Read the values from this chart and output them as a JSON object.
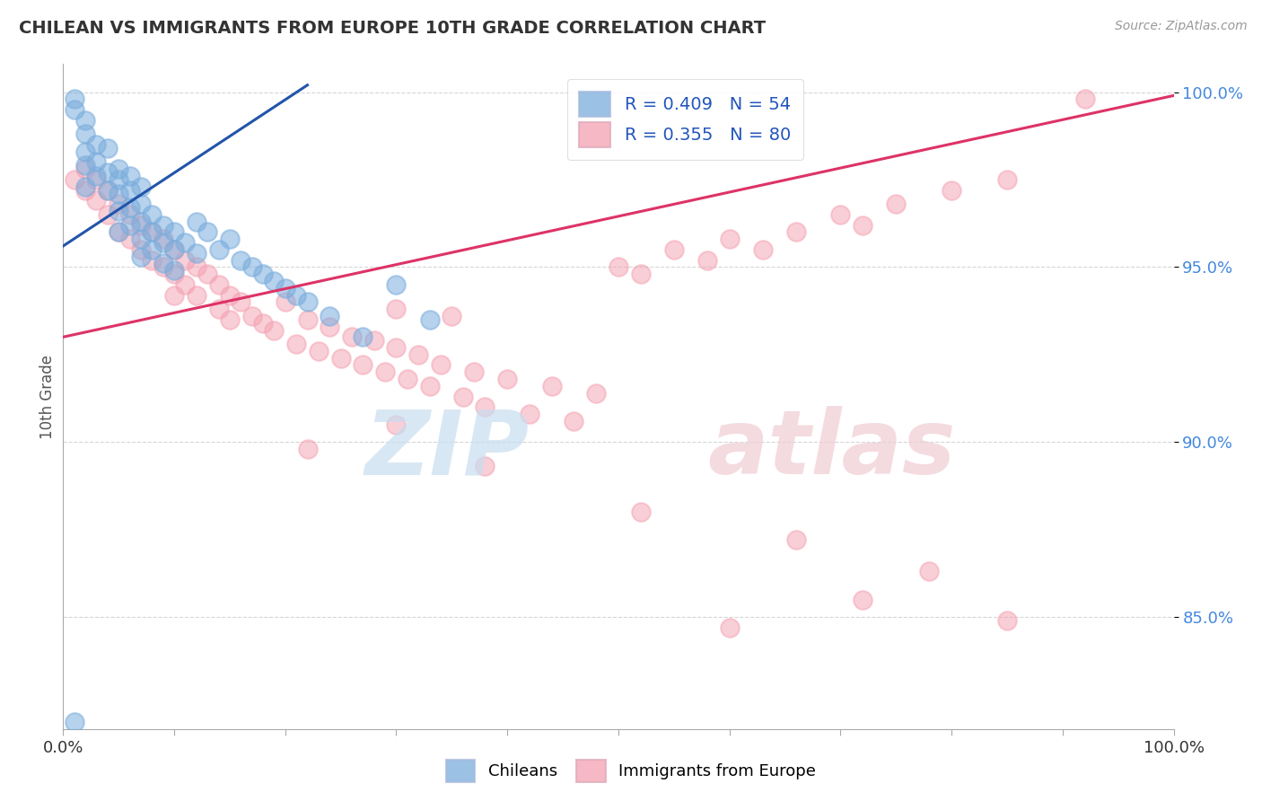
{
  "title": "CHILEAN VS IMMIGRANTS FROM EUROPE 10TH GRADE CORRELATION CHART",
  "source": "Source: ZipAtlas.com",
  "ylabel": "10th Grade",
  "xlim": [
    0.0,
    1.0
  ],
  "ylim": [
    0.818,
    1.008
  ],
  "yticks": [
    0.85,
    0.9,
    0.95,
    1.0
  ],
  "ytick_labels": [
    "85.0%",
    "90.0%",
    "95.0%",
    "100.0%"
  ],
  "legend_blue_label": "R = 0.409   N = 54",
  "legend_pink_label": "R = 0.355   N = 80",
  "legend_bottom_blue": "Chileans",
  "legend_bottom_pink": "Immigrants from Europe",
  "blue_color": "#7aaddd",
  "pink_color": "#f4a0b0",
  "blue_line_color": "#2255aa",
  "pink_line_color": "#dd3366",
  "blue_line": [
    [
      0.0,
      0.956
    ],
    [
      0.22,
      1.002
    ]
  ],
  "pink_line": [
    [
      0.0,
      0.93
    ],
    [
      1.0,
      0.999
    ]
  ],
  "blue_x": [
    0.01,
    0.01,
    0.02,
    0.02,
    0.02,
    0.02,
    0.02,
    0.03,
    0.03,
    0.03,
    0.04,
    0.04,
    0.04,
    0.05,
    0.05,
    0.05,
    0.05,
    0.05,
    0.06,
    0.06,
    0.06,
    0.06,
    0.07,
    0.07,
    0.07,
    0.07,
    0.07,
    0.08,
    0.08,
    0.08,
    0.09,
    0.09,
    0.09,
    0.1,
    0.1,
    0.1,
    0.11,
    0.12,
    0.12,
    0.13,
    0.14,
    0.15,
    0.16,
    0.17,
    0.18,
    0.19,
    0.2,
    0.21,
    0.22,
    0.24,
    0.27,
    0.3,
    0.33,
    0.01
  ],
  "blue_y": [
    0.998,
    0.995,
    0.992,
    0.988,
    0.983,
    0.979,
    0.973,
    0.985,
    0.98,
    0.976,
    0.984,
    0.977,
    0.972,
    0.978,
    0.975,
    0.971,
    0.966,
    0.96,
    0.976,
    0.972,
    0.967,
    0.962,
    0.973,
    0.968,
    0.963,
    0.958,
    0.953,
    0.965,
    0.96,
    0.955,
    0.962,
    0.957,
    0.951,
    0.96,
    0.955,
    0.949,
    0.957,
    0.963,
    0.954,
    0.96,
    0.955,
    0.958,
    0.952,
    0.95,
    0.948,
    0.946,
    0.944,
    0.942,
    0.94,
    0.936,
    0.93,
    0.945,
    0.935,
    0.82
  ],
  "pink_x": [
    0.01,
    0.02,
    0.02,
    0.03,
    0.03,
    0.04,
    0.04,
    0.05,
    0.05,
    0.06,
    0.06,
    0.07,
    0.07,
    0.08,
    0.08,
    0.09,
    0.09,
    0.1,
    0.1,
    0.1,
    0.11,
    0.11,
    0.12,
    0.12,
    0.13,
    0.14,
    0.14,
    0.15,
    0.15,
    0.16,
    0.17,
    0.18,
    0.19,
    0.2,
    0.21,
    0.22,
    0.23,
    0.24,
    0.25,
    0.26,
    0.27,
    0.28,
    0.29,
    0.3,
    0.3,
    0.31,
    0.32,
    0.33,
    0.34,
    0.35,
    0.36,
    0.37,
    0.38,
    0.4,
    0.42,
    0.44,
    0.46,
    0.48,
    0.5,
    0.52,
    0.55,
    0.58,
    0.6,
    0.63,
    0.66,
    0.7,
    0.72,
    0.75,
    0.8,
    0.85,
    0.22,
    0.3,
    0.38,
    0.52,
    0.6,
    0.66,
    0.72,
    0.78,
    0.85,
    0.92
  ],
  "pink_y": [
    0.975,
    0.978,
    0.972,
    0.975,
    0.969,
    0.972,
    0.965,
    0.968,
    0.96,
    0.965,
    0.958,
    0.962,
    0.955,
    0.96,
    0.952,
    0.958,
    0.95,
    0.955,
    0.948,
    0.942,
    0.952,
    0.945,
    0.95,
    0.942,
    0.948,
    0.945,
    0.938,
    0.942,
    0.935,
    0.94,
    0.936,
    0.934,
    0.932,
    0.94,
    0.928,
    0.935,
    0.926,
    0.933,
    0.924,
    0.93,
    0.922,
    0.929,
    0.92,
    0.927,
    0.938,
    0.918,
    0.925,
    0.916,
    0.922,
    0.936,
    0.913,
    0.92,
    0.91,
    0.918,
    0.908,
    0.916,
    0.906,
    0.914,
    0.95,
    0.948,
    0.955,
    0.952,
    0.958,
    0.955,
    0.96,
    0.965,
    0.962,
    0.968,
    0.972,
    0.975,
    0.898,
    0.905,
    0.893,
    0.88,
    0.847,
    0.872,
    0.855,
    0.863,
    0.849,
    0.998
  ]
}
